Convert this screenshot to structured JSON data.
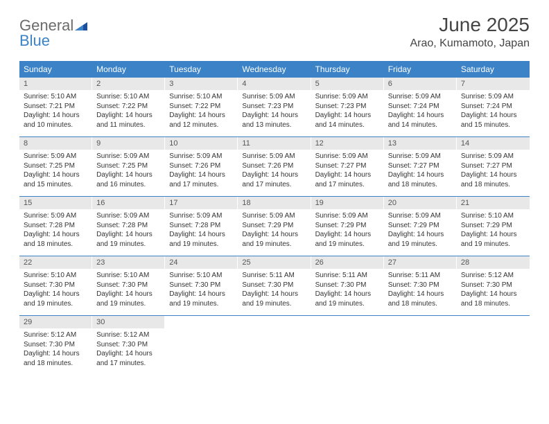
{
  "logo": {
    "text1": "General",
    "text2": "Blue"
  },
  "header": {
    "month_title": "June 2025",
    "location": "Arao, Kumamoto, Japan"
  },
  "colors": {
    "accent": "#3b82c7",
    "header_text": "#ffffff",
    "daynum_bg": "#e8e8e8",
    "body_text": "#333333",
    "logo_gray": "#6b6b6b"
  },
  "day_labels": [
    "Sunday",
    "Monday",
    "Tuesday",
    "Wednesday",
    "Thursday",
    "Friday",
    "Saturday"
  ],
  "weeks": [
    [
      {
        "n": "1",
        "sunrise": "Sunrise: 5:10 AM",
        "sunset": "Sunset: 7:21 PM",
        "daylight": "Daylight: 14 hours and 10 minutes."
      },
      {
        "n": "2",
        "sunrise": "Sunrise: 5:10 AM",
        "sunset": "Sunset: 7:22 PM",
        "daylight": "Daylight: 14 hours and 11 minutes."
      },
      {
        "n": "3",
        "sunrise": "Sunrise: 5:10 AM",
        "sunset": "Sunset: 7:22 PM",
        "daylight": "Daylight: 14 hours and 12 minutes."
      },
      {
        "n": "4",
        "sunrise": "Sunrise: 5:09 AM",
        "sunset": "Sunset: 7:23 PM",
        "daylight": "Daylight: 14 hours and 13 minutes."
      },
      {
        "n": "5",
        "sunrise": "Sunrise: 5:09 AM",
        "sunset": "Sunset: 7:23 PM",
        "daylight": "Daylight: 14 hours and 14 minutes."
      },
      {
        "n": "6",
        "sunrise": "Sunrise: 5:09 AM",
        "sunset": "Sunset: 7:24 PM",
        "daylight": "Daylight: 14 hours and 14 minutes."
      },
      {
        "n": "7",
        "sunrise": "Sunrise: 5:09 AM",
        "sunset": "Sunset: 7:24 PM",
        "daylight": "Daylight: 14 hours and 15 minutes."
      }
    ],
    [
      {
        "n": "8",
        "sunrise": "Sunrise: 5:09 AM",
        "sunset": "Sunset: 7:25 PM",
        "daylight": "Daylight: 14 hours and 15 minutes."
      },
      {
        "n": "9",
        "sunrise": "Sunrise: 5:09 AM",
        "sunset": "Sunset: 7:25 PM",
        "daylight": "Daylight: 14 hours and 16 minutes."
      },
      {
        "n": "10",
        "sunrise": "Sunrise: 5:09 AM",
        "sunset": "Sunset: 7:26 PM",
        "daylight": "Daylight: 14 hours and 17 minutes."
      },
      {
        "n": "11",
        "sunrise": "Sunrise: 5:09 AM",
        "sunset": "Sunset: 7:26 PM",
        "daylight": "Daylight: 14 hours and 17 minutes."
      },
      {
        "n": "12",
        "sunrise": "Sunrise: 5:09 AM",
        "sunset": "Sunset: 7:27 PM",
        "daylight": "Daylight: 14 hours and 17 minutes."
      },
      {
        "n": "13",
        "sunrise": "Sunrise: 5:09 AM",
        "sunset": "Sunset: 7:27 PM",
        "daylight": "Daylight: 14 hours and 18 minutes."
      },
      {
        "n": "14",
        "sunrise": "Sunrise: 5:09 AM",
        "sunset": "Sunset: 7:27 PM",
        "daylight": "Daylight: 14 hours and 18 minutes."
      }
    ],
    [
      {
        "n": "15",
        "sunrise": "Sunrise: 5:09 AM",
        "sunset": "Sunset: 7:28 PM",
        "daylight": "Daylight: 14 hours and 18 minutes."
      },
      {
        "n": "16",
        "sunrise": "Sunrise: 5:09 AM",
        "sunset": "Sunset: 7:28 PM",
        "daylight": "Daylight: 14 hours and 19 minutes."
      },
      {
        "n": "17",
        "sunrise": "Sunrise: 5:09 AM",
        "sunset": "Sunset: 7:28 PM",
        "daylight": "Daylight: 14 hours and 19 minutes."
      },
      {
        "n": "18",
        "sunrise": "Sunrise: 5:09 AM",
        "sunset": "Sunset: 7:29 PM",
        "daylight": "Daylight: 14 hours and 19 minutes."
      },
      {
        "n": "19",
        "sunrise": "Sunrise: 5:09 AM",
        "sunset": "Sunset: 7:29 PM",
        "daylight": "Daylight: 14 hours and 19 minutes."
      },
      {
        "n": "20",
        "sunrise": "Sunrise: 5:09 AM",
        "sunset": "Sunset: 7:29 PM",
        "daylight": "Daylight: 14 hours and 19 minutes."
      },
      {
        "n": "21",
        "sunrise": "Sunrise: 5:10 AM",
        "sunset": "Sunset: 7:29 PM",
        "daylight": "Daylight: 14 hours and 19 minutes."
      }
    ],
    [
      {
        "n": "22",
        "sunrise": "Sunrise: 5:10 AM",
        "sunset": "Sunset: 7:30 PM",
        "daylight": "Daylight: 14 hours and 19 minutes."
      },
      {
        "n": "23",
        "sunrise": "Sunrise: 5:10 AM",
        "sunset": "Sunset: 7:30 PM",
        "daylight": "Daylight: 14 hours and 19 minutes."
      },
      {
        "n": "24",
        "sunrise": "Sunrise: 5:10 AM",
        "sunset": "Sunset: 7:30 PM",
        "daylight": "Daylight: 14 hours and 19 minutes."
      },
      {
        "n": "25",
        "sunrise": "Sunrise: 5:11 AM",
        "sunset": "Sunset: 7:30 PM",
        "daylight": "Daylight: 14 hours and 19 minutes."
      },
      {
        "n": "26",
        "sunrise": "Sunrise: 5:11 AM",
        "sunset": "Sunset: 7:30 PM",
        "daylight": "Daylight: 14 hours and 19 minutes."
      },
      {
        "n": "27",
        "sunrise": "Sunrise: 5:11 AM",
        "sunset": "Sunset: 7:30 PM",
        "daylight": "Daylight: 14 hours and 18 minutes."
      },
      {
        "n": "28",
        "sunrise": "Sunrise: 5:12 AM",
        "sunset": "Sunset: 7:30 PM",
        "daylight": "Daylight: 14 hours and 18 minutes."
      }
    ],
    [
      {
        "n": "29",
        "sunrise": "Sunrise: 5:12 AM",
        "sunset": "Sunset: 7:30 PM",
        "daylight": "Daylight: 14 hours and 18 minutes."
      },
      {
        "n": "30",
        "sunrise": "Sunrise: 5:12 AM",
        "sunset": "Sunset: 7:30 PM",
        "daylight": "Daylight: 14 hours and 17 minutes."
      },
      null,
      null,
      null,
      null,
      null
    ]
  ]
}
